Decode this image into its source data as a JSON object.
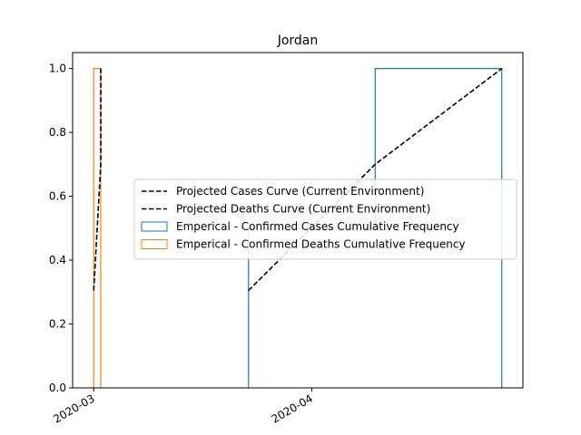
{
  "chart_data": {
    "type": "line",
    "title": "Jordan",
    "xlabel": "",
    "ylabel": "",
    "x_range": [
      "2020-02-27",
      "2020-05-01"
    ],
    "ylim": [
      0,
      1.05
    ],
    "x_ticks": [
      {
        "date": "2020-03-01",
        "label": "2020-03"
      },
      {
        "date": "2020-04-01",
        "label": "2020-04"
      }
    ],
    "y_ticks": [
      {
        "value": 0.0,
        "label": "0.0"
      },
      {
        "value": 0.2,
        "label": "0.2"
      },
      {
        "value": 0.4,
        "label": "0.4"
      },
      {
        "value": 0.6,
        "label": "0.6"
      },
      {
        "value": 0.8,
        "label": "0.8"
      },
      {
        "value": 1.0,
        "label": "1.0"
      }
    ],
    "grid": false,
    "legend_position": "center-right",
    "series": [
      {
        "name": "Projected Cases Curve (Current Environment)",
        "kind": "line",
        "style": "dashed",
        "color": "#000000",
        "points": [
          [
            "2020-03-23",
            0.305
          ],
          [
            "2020-04-10",
            0.7
          ],
          [
            "2020-04-28",
            1.0
          ]
        ]
      },
      {
        "name": "Projected Deaths Curve (Current Environment)",
        "kind": "line",
        "style": "dashed",
        "color": "#000000",
        "points": [
          [
            "2020-03-01",
            0.305
          ],
          [
            "2020-03-02",
            0.7
          ],
          [
            "2020-03-02",
            1.0
          ]
        ]
      },
      {
        "name": "Emperical - Confirmed Cases Cumulative Frequency",
        "kind": "step",
        "color": "#1f77b4",
        "points": [
          [
            "2020-03-23",
            0.0
          ],
          [
            "2020-03-23",
            0.5
          ],
          [
            "2020-04-10",
            0.5
          ],
          [
            "2020-04-10",
            1.0
          ],
          [
            "2020-04-28",
            1.0
          ],
          [
            "2020-04-28",
            0.0
          ]
        ]
      },
      {
        "name": "Emperical - Confirmed Deaths Cumulative Frequency",
        "kind": "step",
        "color": "#ff7f0e",
        "points": [
          [
            "2020-03-01",
            0.0
          ],
          [
            "2020-03-01",
            1.0
          ],
          [
            "2020-03-02",
            1.0
          ],
          [
            "2020-03-02",
            0.0
          ]
        ]
      }
    ]
  }
}
